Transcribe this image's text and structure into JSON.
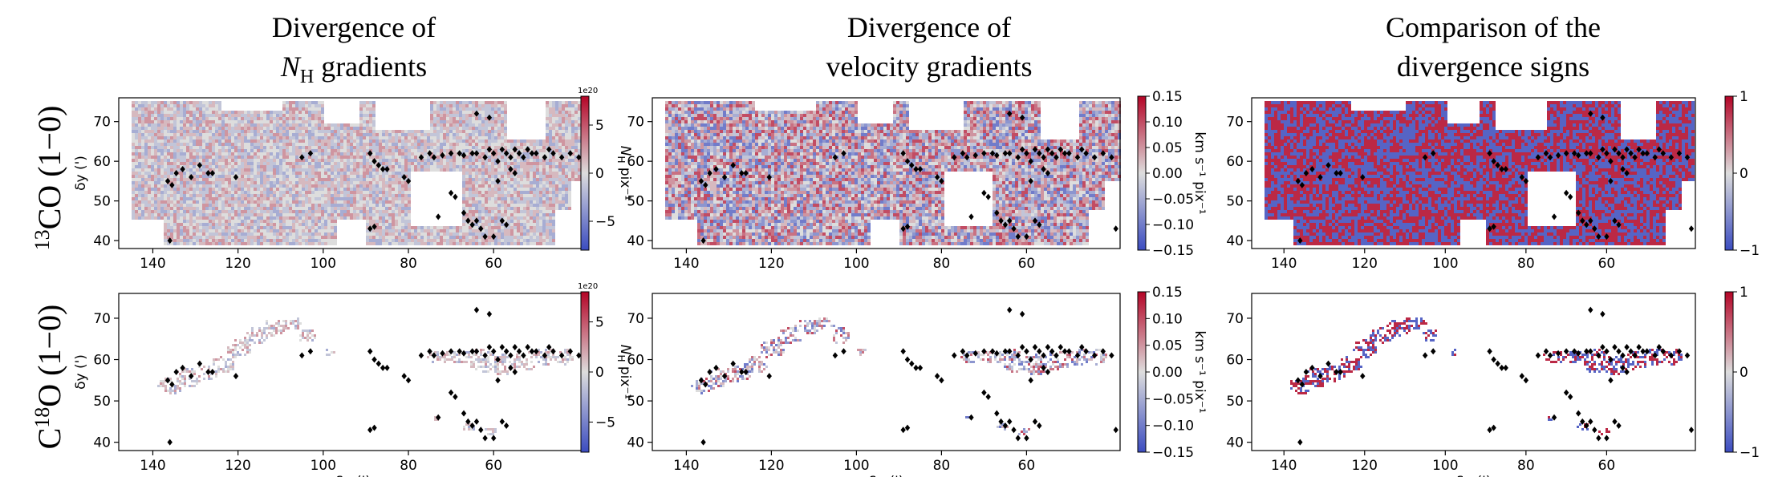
{
  "figure": {
    "column_titles": [
      {
        "line1": "Divergence of",
        "line2_sym": "N",
        "line2_sub": "H",
        "line2_rest": " gradients"
      },
      {
        "line1": "Divergence of",
        "line2_sym": "",
        "line2_sub": "",
        "line2_rest": "velocity gradients"
      },
      {
        "line1": "Comparison of the",
        "line2_sym": "",
        "line2_sub": "",
        "line2_rest": "divergence signs"
      }
    ],
    "row_labels": [
      {
        "pre": "",
        "sup": "13",
        "post": "CO (1−0)"
      },
      {
        "pre": "C",
        "sup": "18",
        "post": "O (1−0)"
      }
    ]
  },
  "colors": {
    "neg": "#3b4cc0",
    "mid": "#dddddd",
    "pos": "#b40426",
    "marker": "#000000"
  },
  "chart_data": [
    {
      "type": "heatmap",
      "row": 0,
      "col": 0,
      "coverage": "13CO",
      "xlabel": "",
      "ylabel": "δy (')",
      "xticks": [
        140,
        120,
        100,
        80,
        60
      ],
      "yticks": [
        40,
        50,
        60,
        70
      ],
      "xlim": [
        148,
        38
      ],
      "ylim": [
        38,
        76
      ],
      "colorbar": {
        "ticks": [
          "5",
          "0",
          "−5"
        ],
        "tick_values": [
          5,
          0,
          -5
        ],
        "range": [
          -8,
          8
        ],
        "exponent": "1e20",
        "label": "N_H pix⁻¹",
        "label_sym": "N",
        "label_sub": "H",
        "label_rest": " pix⁻¹"
      }
    },
    {
      "type": "heatmap",
      "row": 0,
      "col": 1,
      "coverage": "13CO",
      "xlabel": "",
      "ylabel": "",
      "xticks": [
        140,
        120,
        100,
        80,
        60
      ],
      "yticks": [
        40,
        50,
        60,
        70
      ],
      "xlim": [
        148,
        38
      ],
      "ylim": [
        38,
        76
      ],
      "colorbar": {
        "ticks": [
          "0.15",
          "0.10",
          "0.05",
          "0.00",
          "−0.05",
          "−0.10",
          "−0.15"
        ],
        "tick_values": [
          0.15,
          0.1,
          0.05,
          0.0,
          -0.05,
          -0.1,
          -0.15
        ],
        "range": [
          -0.15,
          0.15
        ],
        "exponent": "",
        "label": "km s⁻¹ pix⁻¹",
        "label_sym": "",
        "label_sub": "",
        "label_rest": "km s⁻¹ pix⁻¹"
      }
    },
    {
      "type": "heatmap",
      "row": 0,
      "col": 2,
      "coverage": "13CO",
      "binary": true,
      "xlabel": "",
      "ylabel": "",
      "xticks": [
        140,
        120,
        100,
        80,
        60
      ],
      "yticks": [
        40,
        50,
        60,
        70
      ],
      "xlim": [
        148,
        38
      ],
      "ylim": [
        38,
        76
      ],
      "colorbar": {
        "ticks": [
          "1",
          "0",
          "−1"
        ],
        "tick_values": [
          1,
          0,
          -1
        ],
        "range": [
          -1,
          1
        ],
        "exponent": "",
        "label": "",
        "label_sym": "",
        "label_sub": "",
        "label_rest": ""
      }
    },
    {
      "type": "heatmap",
      "row": 1,
      "col": 0,
      "coverage": "C18O",
      "xlabel": "δx (')",
      "ylabel": "δy (')",
      "xticks": [
        140,
        120,
        100,
        80,
        60
      ],
      "yticks": [
        40,
        50,
        60,
        70
      ],
      "xlim": [
        148,
        38
      ],
      "ylim": [
        38,
        76
      ],
      "colorbar": {
        "ticks": [
          "5",
          "0",
          "−5"
        ],
        "tick_values": [
          5,
          0,
          -5
        ],
        "range": [
          -8,
          8
        ],
        "exponent": "1e20",
        "label": "N_H pix⁻¹",
        "label_sym": "N",
        "label_sub": "H",
        "label_rest": " pix⁻¹"
      }
    },
    {
      "type": "heatmap",
      "row": 1,
      "col": 1,
      "coverage": "C18O",
      "xlabel": "δx (')",
      "ylabel": "",
      "xticks": [
        140,
        120,
        100,
        80,
        60
      ],
      "yticks": [
        40,
        50,
        60,
        70
      ],
      "xlim": [
        148,
        38
      ],
      "ylim": [
        38,
        76
      ],
      "colorbar": {
        "ticks": [
          "0.15",
          "0.10",
          "0.05",
          "0.00",
          "−0.05",
          "−0.10",
          "−0.15"
        ],
        "tick_values": [
          0.15,
          0.1,
          0.05,
          0.0,
          -0.05,
          -0.1,
          -0.15
        ],
        "range": [
          -0.15,
          0.15
        ],
        "exponent": "",
        "label": "km s⁻¹ pix⁻¹",
        "label_sym": "",
        "label_sub": "",
        "label_rest": "km s⁻¹ pix⁻¹"
      }
    },
    {
      "type": "heatmap",
      "row": 1,
      "col": 2,
      "coverage": "C18O",
      "binary": true,
      "xlabel": "δx (')",
      "ylabel": "",
      "xticks": [
        140,
        120,
        100,
        80,
        60
      ],
      "yticks": [
        40,
        50,
        60,
        70
      ],
      "xlim": [
        148,
        38
      ],
      "ylim": [
        38,
        76
      ],
      "colorbar": {
        "ticks": [
          "1",
          "0",
          "−1"
        ],
        "tick_values": [
          1,
          0,
          -1
        ],
        "range": [
          -1,
          1
        ],
        "exponent": "",
        "label": "",
        "label_sym": "",
        "label_sub": "",
        "label_rest": ""
      }
    }
  ],
  "sources": [
    [
      136.5,
      55
    ],
    [
      135.5,
      54
    ],
    [
      134.5,
      57
    ],
    [
      133,
      58
    ],
    [
      131,
      56
    ],
    [
      129,
      59
    ],
    [
      127,
      57
    ],
    [
      126,
      57
    ],
    [
      120.5,
      56
    ],
    [
      105,
      61
    ],
    [
      103,
      62
    ],
    [
      89,
      62
    ],
    [
      88,
      60
    ],
    [
      87,
      59
    ],
    [
      86,
      58
    ],
    [
      85,
      58
    ],
    [
      89,
      43
    ],
    [
      88,
      43.5
    ],
    [
      81,
      56
    ],
    [
      80,
      55
    ],
    [
      77,
      61
    ],
    [
      75,
      62
    ],
    [
      74,
      61
    ],
    [
      72,
      61.5
    ],
    [
      70,
      62
    ],
    [
      68,
      62
    ],
    [
      67,
      61.5
    ],
    [
      65,
      62
    ],
    [
      64,
      62
    ],
    [
      62,
      61
    ],
    [
      61,
      63
    ],
    [
      60,
      62
    ],
    [
      59,
      60
    ],
    [
      58,
      63
    ],
    [
      57,
      62
    ],
    [
      56,
      61
    ],
    [
      55,
      63
    ],
    [
      54,
      62
    ],
    [
      53,
      61
    ],
    [
      52,
      63
    ],
    [
      51,
      62
    ],
    [
      50,
      62
    ],
    [
      48,
      61
    ],
    [
      47,
      63
    ],
    [
      46,
      62
    ],
    [
      44,
      61
    ],
    [
      42,
      62
    ],
    [
      40,
      61
    ],
    [
      70,
      52
    ],
    [
      69,
      51
    ],
    [
      67,
      47
    ],
    [
      66,
      45
    ],
    [
      65,
      44
    ],
    [
      64,
      45
    ],
    [
      63,
      43
    ],
    [
      62,
      41
    ],
    [
      60,
      41
    ],
    [
      58,
      45
    ],
    [
      57,
      44
    ],
    [
      73,
      46
    ],
    [
      64,
      72
    ],
    [
      61,
      71
    ],
    [
      136,
      40
    ],
    [
      39,
      43
    ],
    [
      59,
      55
    ],
    [
      56,
      58
    ],
    [
      55,
      57
    ]
  ]
}
